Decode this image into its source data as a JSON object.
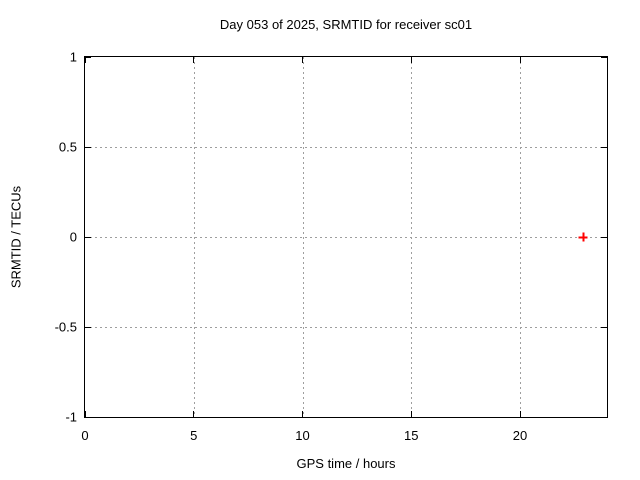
{
  "figure": {
    "background": "#ffffff"
  },
  "chart_data": {
    "type": "scatter",
    "title": "Day 053 of 2025, SRMTID for receiver sc01",
    "xlabel": "GPS time / hours",
    "ylabel": "SRMTID / TECUs",
    "xlim": [
      0,
      24
    ],
    "ylim": [
      -1,
      1
    ],
    "grid": true,
    "legend": "none",
    "xticks": [
      {
        "value": 0,
        "label": "0"
      },
      {
        "value": 5,
        "label": "5"
      },
      {
        "value": 10,
        "label": "10"
      },
      {
        "value": 15,
        "label": "15"
      },
      {
        "value": 20,
        "label": "20"
      }
    ],
    "yticks": [
      {
        "value": 1,
        "label": "1"
      },
      {
        "value": 0.5,
        "label": "0.5"
      },
      {
        "value": 0,
        "label": "0"
      },
      {
        "value": -0.5,
        "label": "-0.5"
      },
      {
        "value": -1,
        "label": "-1"
      }
    ],
    "colors": {
      "grid": "#9e9e9e",
      "frame": "#000000",
      "marker": "#ff0000",
      "background": "#ffffff"
    },
    "series": [
      {
        "name": "SRMTID",
        "marker": "plus",
        "color": "#ff0000",
        "points": [
          {
            "x": 22.9,
            "y": 0
          }
        ]
      }
    ]
  }
}
